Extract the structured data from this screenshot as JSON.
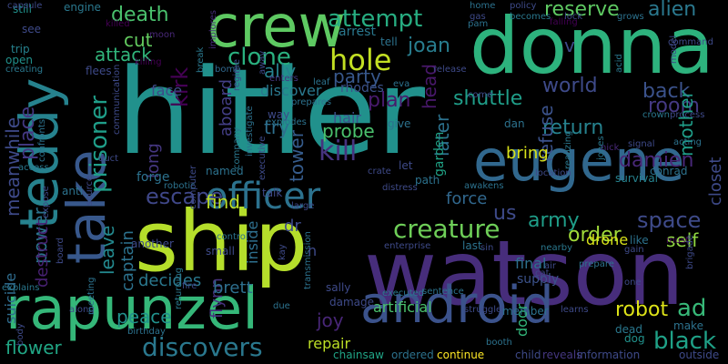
{
  "word_cloud": {
    "background": "#000000",
    "words": [
      {
        "text": "hitler",
        "color": "#21918c"
      },
      {
        "text": "ship",
        "color": "#b5de2b"
      },
      {
        "text": "watson",
        "color": "#472d7b"
      },
      {
        "text": "donna",
        "color": "#2db27d"
      },
      {
        "text": "teddy",
        "color": "#26828e"
      },
      {
        "text": "rapunzel",
        "color": "#35b779"
      },
      {
        "text": "android",
        "color": "#3b528b"
      },
      {
        "text": "crew",
        "color": "#5ec962"
      },
      {
        "text": "eugene",
        "color": "#31688e"
      },
      {
        "text": "officer",
        "color": "#2c728e"
      },
      {
        "text": "take",
        "color": "#38588c"
      },
      {
        "text": "creature",
        "color": "#6ece58"
      },
      {
        "text": "discovers",
        "color": "#2a788e"
      },
      {
        "text": "black",
        "color": "#1fa187"
      },
      {
        "text": "robot",
        "color": "#dde318"
      },
      {
        "text": "ad",
        "color": "#37b878"
      },
      {
        "text": "attempt",
        "color": "#27ad81"
      },
      {
        "text": "death",
        "color": "#4ac16d"
      },
      {
        "text": "hole",
        "color": "#c2df23"
      },
      {
        "text": "clone",
        "color": "#2ab07f"
      },
      {
        "text": "reserve",
        "color": "#5ec962"
      },
      {
        "text": "alien",
        "color": "#2a788e"
      },
      {
        "text": "kirk",
        "color": "#440154"
      },
      {
        "text": "prisoner",
        "color": "#1f9e89"
      },
      {
        "text": "escape",
        "color": "#3f4788"
      },
      {
        "text": "world",
        "color": "#3e4a89"
      },
      {
        "text": "shuttle",
        "color": "#1f9e89"
      },
      {
        "text": "return",
        "color": "#26828e"
      },
      {
        "text": "room",
        "color": "#443983"
      },
      {
        "text": "back",
        "color": "#3b528b"
      },
      {
        "text": "damien",
        "color": "#482878"
      },
      {
        "text": "space",
        "color": "#3e4a89"
      },
      {
        "text": "army",
        "color": "#1f9e89"
      },
      {
        "text": "kill",
        "color": "#46337f"
      },
      {
        "text": "probe",
        "color": "#4ac16d"
      },
      {
        "text": "plan",
        "color": "#481a6c"
      },
      {
        "text": "head",
        "color": "#48186a"
      },
      {
        "text": "later",
        "color": "#2c728e"
      },
      {
        "text": "refuse",
        "color": "#3b528b"
      },
      {
        "text": "mother",
        "color": "#1f9e89"
      },
      {
        "text": "closet",
        "color": "#3e4a89"
      },
      {
        "text": "us",
        "color": "#3e4a89"
      },
      {
        "text": "order",
        "color": "#a0da39"
      },
      {
        "text": "self",
        "color": "#90d743"
      },
      {
        "text": "force",
        "color": "#31688e"
      },
      {
        "text": "bring",
        "color": "#d8e219"
      },
      {
        "text": "joan",
        "color": "#287d8e"
      },
      {
        "text": "party",
        "color": "#38588c"
      },
      {
        "text": "cut",
        "color": "#63cb5f"
      },
      {
        "text": "attack",
        "color": "#31b57b"
      },
      {
        "text": "ally",
        "color": "#26828e"
      },
      {
        "text": "aboard",
        "color": "#433e85"
      },
      {
        "text": "long",
        "color": "#453781"
      },
      {
        "text": "try",
        "color": "#2e6f8e"
      },
      {
        "text": "tower",
        "color": "#365c8d"
      },
      {
        "text": "dr",
        "color": "#3e4a89"
      },
      {
        "text": "find",
        "color": "#bddf26"
      },
      {
        "text": "leave",
        "color": "#23898e"
      },
      {
        "text": "captain",
        "color": "#2c728e"
      },
      {
        "text": "power",
        "color": "#2c728e"
      },
      {
        "text": "place",
        "color": "#443983"
      },
      {
        "text": "meanwhile",
        "color": "#3e4a89"
      },
      {
        "text": "destruct",
        "color": "#482173"
      },
      {
        "text": "suicide",
        "color": "#2f6c8e"
      },
      {
        "text": "decides",
        "color": "#2a788e"
      },
      {
        "text": "peace",
        "color": "#21918c"
      },
      {
        "text": "flower",
        "color": "#21a685"
      },
      {
        "text": "flynn",
        "color": "#46327e"
      },
      {
        "text": "brett",
        "color": "#2e6f8e"
      },
      {
        "text": "joy",
        "color": "#482677"
      },
      {
        "text": "repair",
        "color": "#bddf26"
      },
      {
        "text": "door",
        "color": "#32b67a"
      },
      {
        "text": "artificial",
        "color": "#4ac16d"
      },
      {
        "text": "inside",
        "color": "#2e6f8e"
      },
      {
        "text": "face",
        "color": "#3e4a89"
      },
      {
        "text": "discover",
        "color": "#2a788e"
      },
      {
        "text": "hair",
        "color": "#3b528b"
      },
      {
        "text": "rhodes",
        "color": "#3b528b"
      },
      {
        "text": "arrest",
        "color": "#2a788e"
      },
      {
        "text": "tell",
        "color": "#2c728e"
      },
      {
        "text": "garden",
        "color": "#20a386"
      },
      {
        "text": "final",
        "color": "#2d708e"
      },
      {
        "text": "supply",
        "color": "#3b528b"
      },
      {
        "text": "drone",
        "color": "#d8e219"
      },
      {
        "text": "chainsaw",
        "color": "#20a486"
      },
      {
        "text": "ordered",
        "color": "#2c728e"
      },
      {
        "text": "continue",
        "color": "#fde725"
      },
      {
        "text": "reveals",
        "color": "#453781"
      },
      {
        "text": "information",
        "color": "#3e4a89"
      },
      {
        "text": "outside",
        "color": "#3e4a89"
      },
      {
        "text": "child",
        "color": "#3e4a89"
      },
      {
        "text": "still",
        "color": "#21918c"
      },
      {
        "text": "see",
        "color": "#3e4a89"
      },
      {
        "text": "trip",
        "color": "#26828e"
      },
      {
        "text": "open",
        "color": "#21918c"
      },
      {
        "text": "creating",
        "color": "#2a788e"
      },
      {
        "text": "flees",
        "color": "#3e4a89"
      },
      {
        "text": "killed",
        "color": "#440154"
      },
      {
        "text": "engine",
        "color": "#2a788e"
      },
      {
        "text": "moon",
        "color": "#482878"
      },
      {
        "text": "bomb",
        "color": "#31688e"
      },
      {
        "text": "break",
        "color": "#2a788e"
      },
      {
        "text": "implores",
        "color": "#472d7b"
      },
      {
        "text": "away",
        "color": "#3e4a89"
      },
      {
        "text": "enters",
        "color": "#453781"
      },
      {
        "text": "leaf",
        "color": "#2c728e"
      },
      {
        "text": "eva",
        "color": "#2c728e"
      },
      {
        "text": "home",
        "color": "#2c728e"
      },
      {
        "text": "gas",
        "color": "#3e4a89"
      },
      {
        "text": "pam",
        "color": "#2c728e"
      },
      {
        "text": "policy",
        "color": "#3e4a89"
      },
      {
        "text": "becomes",
        "color": "#2a788e"
      },
      {
        "text": "falling",
        "color": "#440154"
      },
      {
        "text": "lock",
        "color": "#3e4a89"
      },
      {
        "text": "grows",
        "color": "#2c728e"
      },
      {
        "text": "command",
        "color": "#3e4a89"
      },
      {
        "text": "acid",
        "color": "#2a788e"
      },
      {
        "text": "crown",
        "color": "#2a788e"
      },
      {
        "text": "process",
        "color": "#3e4a89"
      },
      {
        "text": "acting",
        "color": "#2c728e"
      },
      {
        "text": "signal",
        "color": "#3e4a89"
      },
      {
        "text": "conrad",
        "color": "#2c728e"
      },
      {
        "text": "survival",
        "color": "#26828e"
      },
      {
        "text": "nick",
        "color": "#482878"
      },
      {
        "text": "jones",
        "color": "#2a788e"
      },
      {
        "text": "dan",
        "color": "#2c728e"
      },
      {
        "text": "give",
        "color": "#2c728e"
      },
      {
        "text": "let",
        "color": "#3e4a89"
      },
      {
        "text": "crate",
        "color": "#3e4a89"
      },
      {
        "text": "path",
        "color": "#2c728e"
      },
      {
        "text": "awakens",
        "color": "#2c728e"
      },
      {
        "text": "distress",
        "color": "#3e4a89"
      },
      {
        "text": "enterprise",
        "color": "#3e4a89"
      },
      {
        "text": "last",
        "color": "#2c728e"
      },
      {
        "text": "nearby",
        "color": "#2a788e"
      },
      {
        "text": "air",
        "color": "#3e4a89"
      },
      {
        "text": "cat",
        "color": "#3e4a89"
      },
      {
        "text": "prepare",
        "color": "#2c728e"
      },
      {
        "text": "gain",
        "color": "#3e4a89"
      },
      {
        "text": "like",
        "color": "#2c728e"
      },
      {
        "text": "must",
        "color": "#440154"
      },
      {
        "text": "one",
        "color": "#3e4a89"
      },
      {
        "text": "brigade",
        "color": "#3e4a89"
      },
      {
        "text": "member",
        "color": "#2c728e"
      },
      {
        "text": "learns",
        "color": "#3e4a89"
      },
      {
        "text": "dead",
        "color": "#2a788e"
      },
      {
        "text": "make",
        "color": "#2c728e"
      },
      {
        "text": "dog",
        "color": "#21918c"
      },
      {
        "text": "booth",
        "color": "#2c728e"
      },
      {
        "text": "struggle",
        "color": "#3e4a89"
      },
      {
        "text": "sentence",
        "color": "#2c728e"
      },
      {
        "text": "executed",
        "color": "#2a788e"
      },
      {
        "text": "damage",
        "color": "#3e4a89"
      },
      {
        "text": "sally",
        "color": "#3e4a89"
      },
      {
        "text": "due",
        "color": "#2c728e"
      },
      {
        "text": "transmission",
        "color": "#2c728e"
      },
      {
        "text": "kay",
        "color": "#3e4a89"
      },
      {
        "text": "control",
        "color": "#2c728e"
      },
      {
        "text": "small",
        "color": "#3e4a89"
      },
      {
        "text": "another",
        "color": "#3e4a89"
      },
      {
        "text": "returning",
        "color": "#2a788e"
      },
      {
        "text": "fire",
        "color": "#3e4a89"
      },
      {
        "text": "birthday",
        "color": "#2c728e"
      },
      {
        "text": "body",
        "color": "#3e4a89"
      },
      {
        "text": "explains",
        "color": "#2a788e"
      },
      {
        "text": "along",
        "color": "#3e4a89"
      },
      {
        "text": "meeting",
        "color": "#2c728e"
      },
      {
        "text": "anti",
        "color": "#2c728e"
      },
      {
        "text": "duct",
        "color": "#3e4a89"
      },
      {
        "text": "robotic",
        "color": "#2c728e"
      },
      {
        "text": "forge",
        "color": "#2c728e"
      },
      {
        "text": "computer",
        "color": "#3e4a89"
      },
      {
        "text": "named",
        "color": "#2c728e"
      },
      {
        "text": "company",
        "color": "#2a788e"
      },
      {
        "text": "investigate",
        "color": "#2c728e"
      },
      {
        "text": "explodes",
        "color": "#2c728e"
      },
      {
        "text": "executive",
        "color": "#3e4a89"
      },
      {
        "text": "talk",
        "color": "#3e4a89"
      },
      {
        "text": "communication",
        "color": "#3e4a89"
      },
      {
        "text": "confronts",
        "color": "#2c728e"
      },
      {
        "text": "access",
        "color": "#2a788e"
      },
      {
        "text": "capsule",
        "color": "#3e4a89"
      },
      {
        "text": "way",
        "color": "#3e4a89"
      },
      {
        "text": "regime",
        "color": "#3e4a89"
      },
      {
        "text": "prepares",
        "color": "#2c728e"
      },
      {
        "text": "release",
        "color": "#3e4a89"
      },
      {
        "text": "realizing",
        "color": "#2a788e"
      },
      {
        "text": "location",
        "color": "#3e4a89"
      },
      {
        "text": "v",
        "color": "#3e4a89"
      },
      {
        "text": "n",
        "color": "#3e4a89"
      },
      {
        "text": "sin",
        "color": "#3e4a89"
      },
      {
        "text": "come",
        "color": "#3e4a89"
      },
      {
        "text": "model",
        "color": "#3e4a89"
      },
      {
        "text": "board",
        "color": "#3e4a89"
      },
      {
        "text": "large",
        "color": "#3e4a89"
      },
      {
        "text": "source",
        "color": "#3e4a89"
      },
      {
        "text": "expose",
        "color": "#3e4a89"
      },
      {
        "text": "killing",
        "color": "#440154"
      }
    ]
  }
}
